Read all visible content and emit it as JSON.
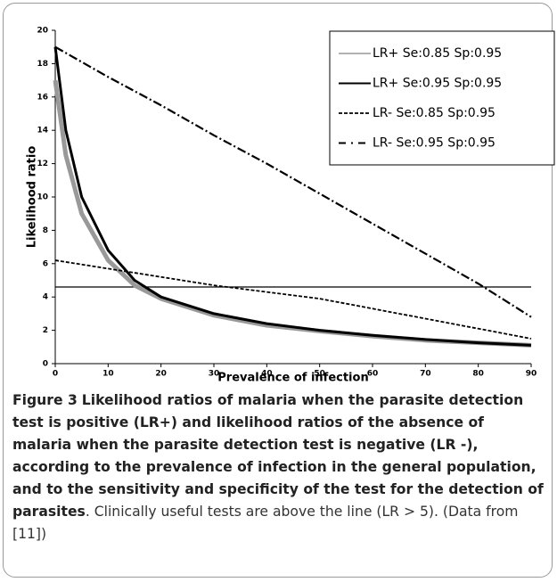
{
  "chart_data": {
    "type": "line",
    "x_label": "Prevalence of infection",
    "y_label": "Likelihood ratio",
    "xlim": [
      0,
      90
    ],
    "xticks": [
      0,
      10,
      20,
      30,
      40,
      50,
      60,
      70,
      80,
      90
    ],
    "ylim": [
      0,
      20
    ],
    "yticks": [
      0,
      2,
      4,
      6,
      8,
      10,
      12,
      14,
      16,
      18,
      20
    ],
    "reference_line": 4.6,
    "series": [
      {
        "name": "LR+ Se:0.85 Sp:0.95",
        "color": "#999999",
        "line_style": "thick",
        "x": [
          0,
          2,
          5,
          10,
          15,
          20,
          30,
          40,
          50,
          60,
          70,
          80,
          90
        ],
        "values": [
          17,
          12.5,
          9,
          6.2,
          4.7,
          3.9,
          2.9,
          2.3,
          1.95,
          1.65,
          1.4,
          1.25,
          1.1
        ]
      },
      {
        "name": "LR+ Se:0.95 Sp:0.95",
        "color": "#000000",
        "line_style": "solid",
        "x": [
          0,
          2,
          5,
          10,
          15,
          20,
          30,
          40,
          50,
          60,
          70,
          80,
          90
        ],
        "values": [
          19,
          14,
          10,
          6.8,
          5.0,
          4.0,
          3.0,
          2.4,
          2.0,
          1.7,
          1.45,
          1.25,
          1.1
        ]
      },
      {
        "name": "LR- Se:0.85 Sp:0.95",
        "color": "#000000",
        "line_style": "dashed",
        "x": [
          0,
          10,
          20,
          30,
          40,
          50,
          60,
          70,
          80,
          90
        ],
        "values": [
          6.2,
          5.7,
          5.2,
          4.7,
          4.3,
          3.9,
          3.3,
          2.7,
          2.1,
          1.5
        ]
      },
      {
        "name": "LR- Se:0.95 Sp:0.95",
        "color": "#000000",
        "line_style": "dashdot",
        "x": [
          0,
          10,
          20,
          30,
          40,
          50,
          60,
          70,
          80,
          90
        ],
        "values": [
          19,
          17.2,
          15.5,
          13.7,
          12,
          10.2,
          8.4,
          6.6,
          4.8,
          2.8
        ]
      }
    ]
  },
  "figure": {
    "label": "Figure 3",
    "title": "Likelihood ratios of malaria when the parasite detection test is positive (LR+) and likelihood ratios of the absence of malaria when the parasite detection test is negative (LR -), according to the prevalence of infection in the general population, and to the sensitivity and specificity of the test for the detection of parasites",
    "text": ". Clinically useful tests are above the line (LR > 5). (Data from [11])"
  }
}
